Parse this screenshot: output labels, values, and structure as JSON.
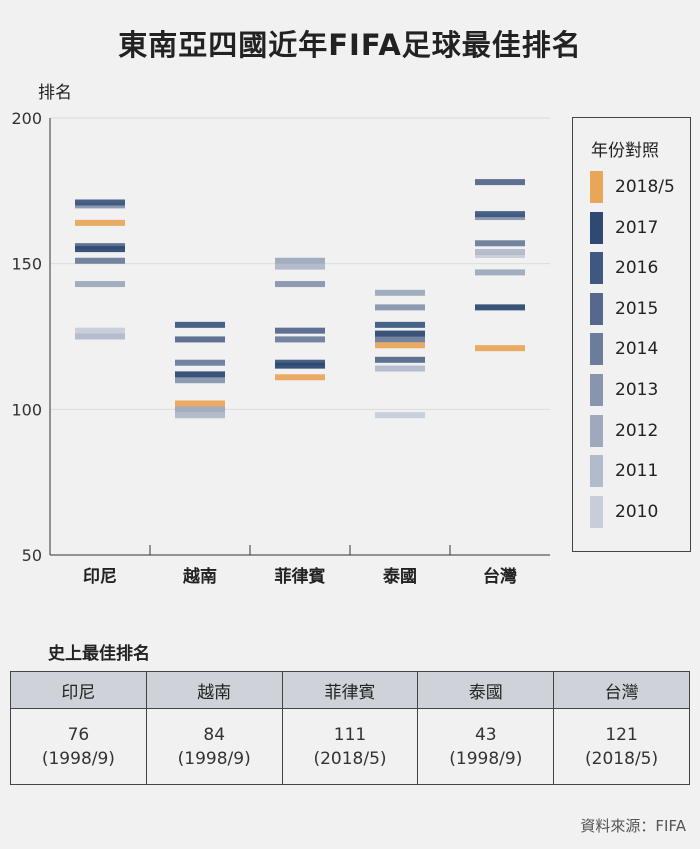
{
  "title": "東南亞四國近年FIFA足球最佳排名",
  "chart_data": {
    "type": "scatter",
    "ylabel": "排名",
    "ylim": [
      50,
      200
    ],
    "yticks": [
      50,
      100,
      150,
      200
    ],
    "categories": [
      "印尼",
      "越南",
      "菲律賓",
      "泰國",
      "台灣"
    ],
    "legend_title": "年份對照",
    "legend_position": "right",
    "series": [
      {
        "name": "2018/5",
        "color": "#e8a659",
        "values": [
          164,
          102,
          111,
          122,
          121
        ]
      },
      {
        "name": "2017",
        "color": "#2f4a72",
        "values": [
          155,
          112,
          115,
          126,
          135
        ]
      },
      {
        "name": "2016",
        "color": "#3e5880",
        "values": [
          171,
          129,
          116,
          129,
          167
        ]
      },
      {
        "name": "2015",
        "color": "#56698c",
        "values": [
          156,
          124,
          127,
          117,
          178
        ]
      },
      {
        "name": "2014",
        "color": "#6c7d9b",
        "values": [
          151,
          116,
          124,
          124,
          157
        ]
      },
      {
        "name": "2013",
        "color": "#8795ae",
        "values": [
          170,
          110,
          143,
          135,
          166
        ]
      },
      {
        "name": "2012",
        "color": "#9ea9bd",
        "values": [
          143,
          100,
          151,
          140,
          147
        ]
      },
      {
        "name": "2011",
        "color": "#b2bbcb",
        "values": [
          125,
          98,
          149,
          114,
          154
        ]
      },
      {
        "name": "2010",
        "color": "#c7ced9",
        "values": [
          127,
          98,
          149,
          98,
          153
        ]
      }
    ]
  },
  "best_rank": {
    "title": "史上最佳排名",
    "headers": [
      "印尼",
      "越南",
      "菲律賓",
      "泰國",
      "台灣"
    ],
    "ranks": [
      "76",
      "84",
      "111",
      "43",
      "121"
    ],
    "dates": [
      "(1998/9)",
      "(1998/9)",
      "(2018/5)",
      "(1998/9)",
      "(2018/5)"
    ]
  },
  "source": "資料來源：FIFA"
}
